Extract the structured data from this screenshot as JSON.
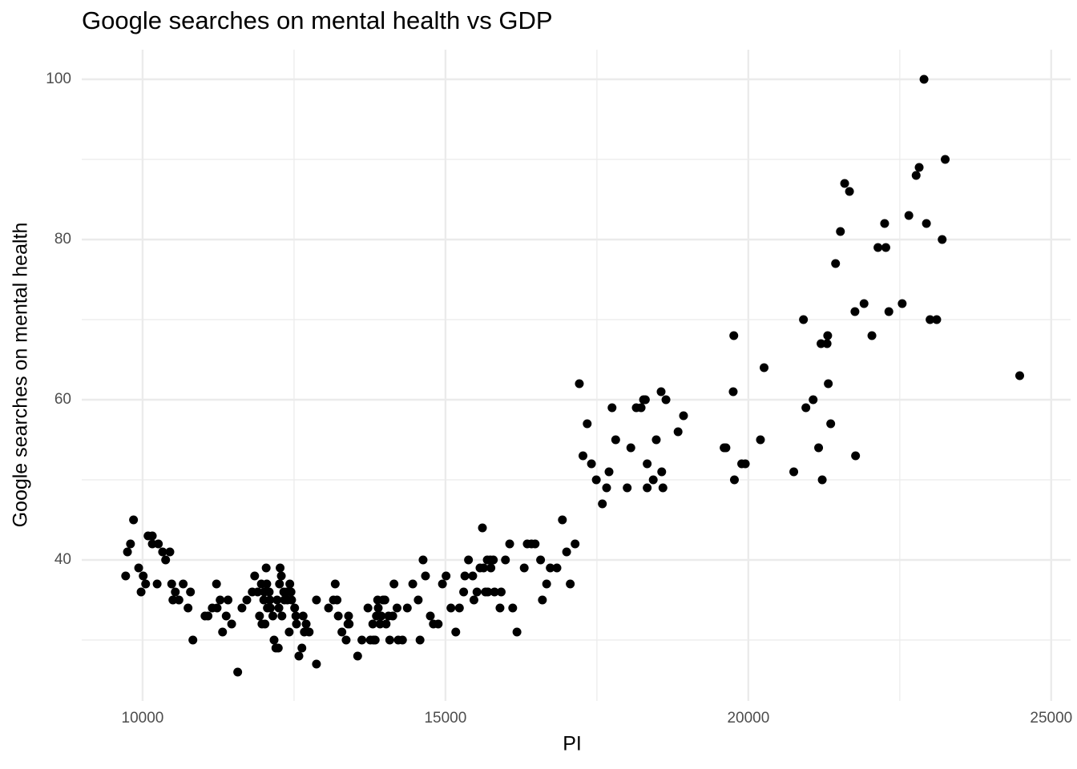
{
  "chart_data": {
    "type": "scatter",
    "title": "Google searches on mental health vs GDP",
    "x_label": "PI",
    "y_label": "Google searches on mental health",
    "xlim": [
      8995,
      25320
    ],
    "ylim": [
      22.4,
      103.7
    ],
    "xticks": [
      10000,
      15000,
      20000,
      25000
    ],
    "yticks": [
      40,
      60,
      80,
      100
    ],
    "minor_xticks": [
      12500,
      17500,
      22500
    ],
    "minor_yticks": [
      30,
      50,
      70,
      90
    ],
    "grid": true,
    "color": "#000000",
    "x": [
      9720,
      9750,
      9800,
      9850,
      9935,
      9975,
      10010,
      10050,
      10090,
      10160,
      10160,
      10240,
      10260,
      10330,
      10380,
      10450,
      10480,
      10500,
      10540,
      10600,
      10670,
      10750,
      10790,
      10830,
      11030,
      11080,
      11150,
      11220,
      11230,
      11280,
      11320,
      11380,
      11410,
      11470,
      11570,
      11640,
      11720,
      11810,
      11850,
      11900,
      11930,
      11960,
      11970,
      12000,
      12010,
      12020,
      12040,
      12050,
      12060,
      12090,
      12100,
      12110,
      12150,
      12170,
      12200,
      12220,
      12240,
      12250,
      12260,
      12270,
      12290,
      12300,
      12330,
      12340,
      12380,
      12390,
      12420,
      12430,
      12450,
      12460,
      12510,
      12530,
      12540,
      12580,
      12630,
      12650,
      12670,
      12700,
      12750,
      12870,
      12870,
      13070,
      13150,
      13180,
      13210,
      13230,
      13290,
      13360,
      13390,
      13400,
      13410,
      13550,
      13620,
      13720,
      13760,
      13800,
      13810,
      13840,
      13860,
      13880,
      13890,
      13920,
      13940,
      13970,
      14000,
      14020,
      14060,
      14080,
      14130,
      14150,
      14200,
      14220,
      14290,
      14370,
      14460,
      14550,
      14580,
      14630,
      14670,
      14750,
      14800,
      14880,
      14950,
      15010,
      15090,
      15170,
      15230,
      15300,
      15320,
      15380,
      15450,
      15470,
      15520,
      15570,
      15610,
      15630,
      15660,
      15690,
      15700,
      15740,
      15750,
      15790,
      15810,
      15900,
      15920,
      15990,
      16060,
      16110,
      16180,
      16300,
      16350,
      16420,
      16480,
      16570,
      16600,
      16670,
      16730,
      16840,
      16930,
      17000,
      17060,
      17140,
      17210,
      17270,
      17340,
      17410,
      17490,
      17590,
      17660,
      17700,
      17750,
      17810,
      18000,
      18060,
      18150,
      18230,
      18270,
      18300,
      18330,
      18330,
      18430,
      18480,
      18560,
      18570,
      18590,
      18640,
      18840,
      18930,
      19600,
      19630,
      19750,
      19770,
      19760,
      19890,
      19950,
      20200,
      20260,
      20750,
      20910,
      20950,
      21070,
      21160,
      21200,
      21220,
      21300,
      21310,
      21320,
      21360,
      21440,
      21520,
      21590,
      21670,
      21760,
      21770,
      21910,
      22040,
      22140,
      22250,
      22270,
      22320,
      22540,
      22650,
      22770,
      22820,
      22900,
      22940,
      23000,
      23110,
      23200,
      23250,
      24480
    ],
    "values": [
      38,
      41,
      42,
      45,
      39,
      36,
      38,
      37,
      43,
      43,
      42,
      37,
      42,
      41,
      40,
      41,
      37,
      35,
      36,
      35,
      37,
      34,
      36,
      30,
      33,
      33,
      34,
      37,
      34,
      35,
      31,
      33,
      35,
      32,
      26,
      34,
      35,
      36,
      38,
      36,
      33,
      37,
      32,
      35,
      36,
      32,
      39,
      37,
      34,
      36,
      35,
      34,
      33,
      30,
      29,
      35,
      29,
      34,
      37,
      39,
      38,
      33,
      36,
      35,
      36,
      35,
      31,
      37,
      36,
      35,
      34,
      33,
      32,
      28,
      29,
      33,
      31,
      32,
      31,
      27,
      35,
      34,
      35,
      37,
      35,
      33,
      31,
      30,
      32,
      33,
      32,
      28,
      30,
      34,
      30,
      32,
      30,
      30,
      33,
      35,
      34,
      32,
      33,
      35,
      35,
      32,
      33,
      30,
      33,
      37,
      34,
      30,
      30,
      34,
      37,
      35,
      30,
      40,
      38,
      33,
      32,
      32,
      37,
      38,
      34,
      31,
      34,
      36,
      38,
      40,
      38,
      35,
      36,
      39,
      44,
      39,
      36,
      40,
      36,
      40,
      39,
      40,
      36,
      34,
      36,
      40,
      42,
      34,
      31,
      39,
      42,
      42,
      42,
      40,
      35,
      37,
      39,
      39,
      45,
      41,
      37,
      42,
      62,
      53,
      57,
      52,
      50,
      47,
      49,
      51,
      59,
      55,
      49,
      54,
      59,
      59,
      60,
      60,
      52,
      49,
      50,
      55,
      61,
      51,
      49,
      60,
      56,
      58,
      54,
      54,
      61,
      50,
      68,
      52,
      52,
      55,
      64,
      51,
      70,
      59,
      60,
      54,
      67,
      50,
      67,
      68,
      62,
      57,
      77,
      81,
      87,
      86,
      71,
      53,
      72,
      68,
      79,
      82,
      79,
      71,
      72,
      83,
      88,
      89,
      100,
      82,
      70,
      70,
      80,
      90,
      63
    ]
  }
}
